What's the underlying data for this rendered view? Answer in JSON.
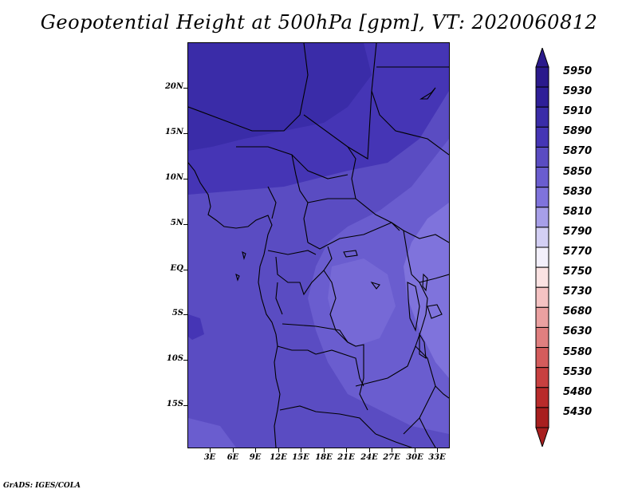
{
  "title": "Geopotential Height at 500hPa [gpm], VT: 2020060812",
  "credit": "GrADS: IGES/COLA",
  "y_axis": {
    "labels": [
      "20N",
      "15N",
      "10N",
      "5N",
      "EQ",
      "5S",
      "10S",
      "15S"
    ]
  },
  "x_axis": {
    "labels": [
      "3E",
      "6E",
      "9E",
      "12E",
      "15E",
      "18E",
      "21E",
      "24E",
      "27E",
      "30E",
      "33E"
    ]
  },
  "colorbar": {
    "labels": [
      "5950",
      "5930",
      "5910",
      "5890",
      "5870",
      "5850",
      "5830",
      "5810",
      "5790",
      "5770",
      "5750",
      "5730",
      "5680",
      "5630",
      "5580",
      "5530",
      "5480",
      "5430"
    ],
    "colors": [
      "#2b1a8c",
      "#2f1f98",
      "#3a2ca8",
      "#4535b5",
      "#5a4cc2",
      "#6a5dcf",
      "#7f73dc",
      "#a79fe8",
      "#d3cff4",
      "#f3f0fb",
      "#fbe3e3",
      "#f5c3c3",
      "#eba1a1",
      "#e07f7f",
      "#d45c5c",
      "#c84040",
      "#b92b2b",
      "#a81f1f"
    ]
  },
  "map_colors": {
    "level_5910": "#3a2ca8",
    "level_5890": "#4535b5",
    "level_5870": "#5a4cc2",
    "level_5850": "#6a5dcf",
    "level_5830": "#7f73dc",
    "borders": "#000000"
  }
}
